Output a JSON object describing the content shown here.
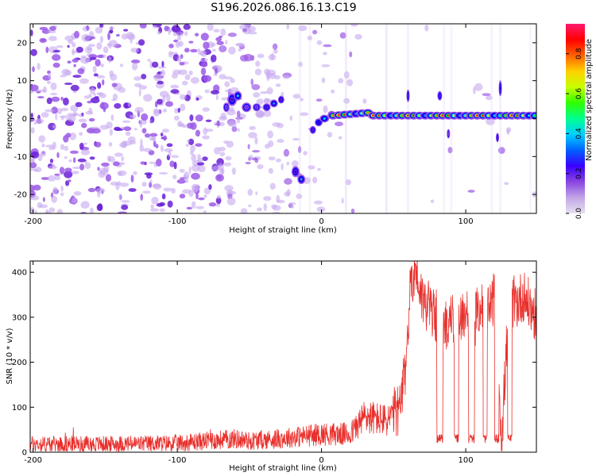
{
  "figure_title": "S196.2026.086.16.13.C19",
  "colors": {
    "snr_line": "#e8302c",
    "axis": "#000000",
    "colormap": [
      "#f2ecfb",
      "#c7a8f0",
      "#9b59e6",
      "#6a1fd6",
      "#3a0fd0",
      "#0a00ff",
      "#00a6ff",
      "#00ffd0",
      "#00ff2a",
      "#b4ff00",
      "#ffff00",
      "#ff8a00",
      "#ff1a00",
      "#ff1493"
    ]
  },
  "chart_data": [
    {
      "type": "heatmap",
      "title": "",
      "xlabel": "Height of straight line (km)",
      "ylabel": "Frequency (Hz)",
      "xlim": [
        -202,
        149
      ],
      "ylim": [
        -25,
        25
      ],
      "xticks": [
        -200,
        -100,
        0,
        100
      ],
      "xtick_labels": [
        "-200",
        "-100",
        "0",
        "100"
      ],
      "yticks": [
        -20,
        -10,
        0,
        10,
        20
      ],
      "ytick_labels": [
        "-20",
        "-10",
        "0",
        "10",
        "20"
      ],
      "colorbar": {
        "label": "Normalized spectral amplitude",
        "range": [
          0,
          0.95
        ],
        "ticks": [
          0,
          0.2,
          0.4,
          0.6,
          0.8
        ],
        "tick_labels": [
          "0.0",
          "0.2",
          "0.4",
          "0.6",
          "0.8"
        ]
      },
      "features": [
        {
          "name": "scattered noise",
          "x_range": [
            -202,
            -35
          ],
          "frequency_range": [
            -25,
            25
          ],
          "amplitude": 0.05
        },
        {
          "name": "early signal",
          "x_range": [
            -65,
            -25
          ],
          "frequency_center": 4,
          "amplitude": 0.2
        },
        {
          "name": "low-frequency burst",
          "x_range": [
            -20,
            -12
          ],
          "frequency_center": -15,
          "amplitude": 0.4
        },
        {
          "name": "carrier line",
          "x_range": [
            -8,
            149
          ],
          "frequency_center": 0.8,
          "amplitude": 0.9
        }
      ]
    },
    {
      "type": "line",
      "title": "",
      "xlabel": "Height of straight line (km)",
      "ylabel": "SNR (10 * v/v)",
      "xlim": [
        -202,
        149
      ],
      "ylim": [
        0,
        425
      ],
      "xticks": [
        -200,
        -100,
        0,
        100
      ],
      "xtick_labels": [
        "-200",
        "-100",
        "0",
        "100"
      ],
      "yticks": [
        0,
        100,
        200,
        300,
        400
      ],
      "ytick_labels": [
        "0",
        "100",
        "200",
        "300",
        "400"
      ],
      "series": [
        {
          "name": "SNR",
          "x": [
            -202,
            -150,
            -100,
            -60,
            -50,
            -30,
            0,
            20,
            30,
            45,
            55,
            58,
            62,
            65,
            70,
            75,
            80,
            82,
            85,
            90,
            95,
            100,
            105,
            110,
            115,
            120,
            125,
            130,
            135,
            140,
            145,
            149
          ],
          "values": [
            18,
            18,
            20,
            30,
            25,
            30,
            40,
            40,
            80,
            70,
            100,
            180,
            380,
            410,
            340,
            320,
            300,
            30,
            280,
            300,
            280,
            320,
            280,
            330,
            300,
            350,
            30,
            340,
            330,
            350,
            320,
            300
          ]
        }
      ]
    }
  ]
}
